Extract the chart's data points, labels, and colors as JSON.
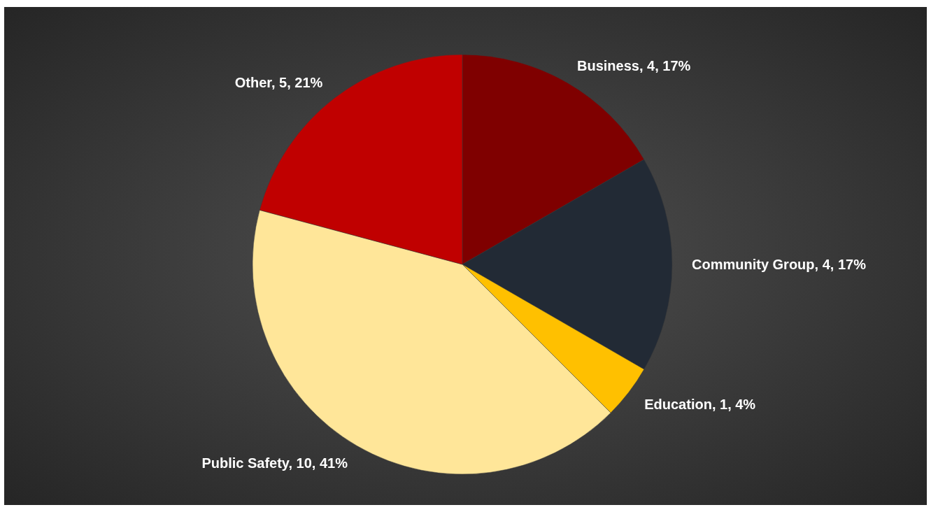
{
  "chart_data": {
    "type": "pie",
    "categories": [
      "Business",
      "Community Group",
      "Education",
      "Public Safety",
      "Other"
    ],
    "values": [
      4,
      4,
      1,
      10,
      5
    ],
    "colors": [
      "#7f0000",
      "#222a35",
      "#ffc000",
      "#ffe699",
      "#c00000"
    ],
    "value_labels": [
      "4, 17%",
      "4, 17%",
      "1, 4%",
      "10, 41%",
      "5, 21%"
    ]
  }
}
